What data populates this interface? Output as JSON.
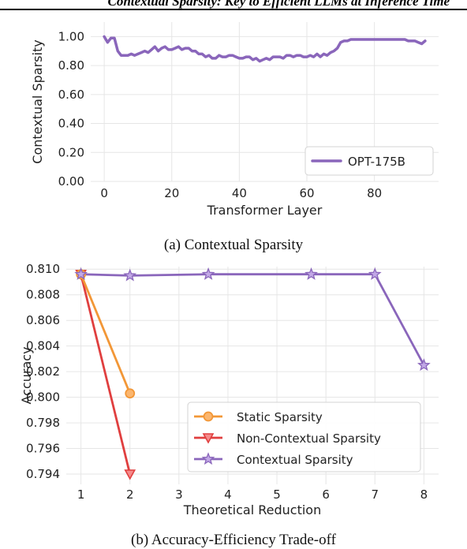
{
  "page_header": "Contextual Sparsity: Key to Efficient LLMs at Inference Time",
  "captions": {
    "a": "(a) Contextual Sparsity",
    "b": "(b) Accuracy-Efficiency Trade-off"
  },
  "colors": {
    "purple": "#8a66bb",
    "orange": "#f29737",
    "red": "#e03f3f",
    "grid": "#e6e6e6"
  },
  "chart_data": [
    {
      "type": "line",
      "title": "",
      "xlabel": "Transformer Layer",
      "ylabel": "Contextual Sparsity",
      "xlim": [
        -4,
        99
      ],
      "ylim": [
        0,
        1.1
      ],
      "xticks": [
        0,
        20,
        40,
        60,
        80
      ],
      "yticks": [
        0.0,
        0.2,
        0.4,
        0.6,
        0.8,
        1.0
      ],
      "ytick_labels": [
        "0.00",
        "0.20",
        "0.40",
        "0.60",
        "0.80",
        "1.00"
      ],
      "grid": true,
      "legend_position": "bottom-right",
      "series": [
        {
          "name": "OPT-175B",
          "x": [
            0,
            1,
            2,
            3,
            4,
            5,
            6,
            7,
            8,
            9,
            10,
            11,
            12,
            13,
            14,
            15,
            16,
            17,
            18,
            19,
            20,
            21,
            22,
            23,
            24,
            25,
            26,
            27,
            28,
            29,
            30,
            31,
            32,
            33,
            34,
            35,
            36,
            37,
            38,
            39,
            40,
            41,
            42,
            43,
            44,
            45,
            46,
            47,
            48,
            49,
            50,
            51,
            52,
            53,
            54,
            55,
            56,
            57,
            58,
            59,
            60,
            61,
            62,
            63,
            64,
            65,
            66,
            67,
            68,
            69,
            70,
            71,
            72,
            73,
            74,
            75,
            76,
            77,
            78,
            79,
            80,
            81,
            82,
            83,
            84,
            85,
            86,
            87,
            88,
            89,
            90,
            91,
            92,
            93,
            94,
            95
          ],
          "y": [
            1.0,
            0.96,
            0.99,
            0.99,
            0.9,
            0.87,
            0.87,
            0.87,
            0.88,
            0.87,
            0.88,
            0.89,
            0.9,
            0.89,
            0.91,
            0.93,
            0.9,
            0.92,
            0.93,
            0.91,
            0.91,
            0.92,
            0.93,
            0.91,
            0.92,
            0.92,
            0.9,
            0.9,
            0.88,
            0.88,
            0.86,
            0.87,
            0.85,
            0.85,
            0.87,
            0.86,
            0.86,
            0.87,
            0.87,
            0.86,
            0.85,
            0.85,
            0.86,
            0.86,
            0.84,
            0.85,
            0.83,
            0.84,
            0.85,
            0.84,
            0.86,
            0.86,
            0.86,
            0.85,
            0.87,
            0.87,
            0.86,
            0.87,
            0.87,
            0.86,
            0.86,
            0.87,
            0.86,
            0.88,
            0.86,
            0.88,
            0.87,
            0.89,
            0.9,
            0.92,
            0.96,
            0.97,
            0.97,
            0.98,
            0.98,
            0.98,
            0.98,
            0.98,
            0.98,
            0.98,
            0.98,
            0.98,
            0.98,
            0.98,
            0.98,
            0.98,
            0.98,
            0.98,
            0.98,
            0.98,
            0.97,
            0.97,
            0.97,
            0.96,
            0.95,
            0.97
          ]
        }
      ]
    },
    {
      "type": "line",
      "title": "",
      "xlabel": "Theoretical Reduction",
      "ylabel": "Accuracy",
      "xlim": [
        0.7,
        8.3
      ],
      "ylim": [
        0.7932,
        0.8102
      ],
      "xticks": [
        1,
        2,
        3,
        4,
        5,
        6,
        7,
        8
      ],
      "yticks": [
        0.794,
        0.796,
        0.798,
        0.8,
        0.802,
        0.804,
        0.806,
        0.808,
        0.81
      ],
      "ytick_labels": [
        "0.794",
        "0.796",
        "0.798",
        "0.800",
        "0.802",
        "0.804",
        "0.806",
        "0.808",
        "0.810"
      ],
      "grid": true,
      "legend_position": "lower-center-right",
      "series": [
        {
          "name": "Static Sparsity",
          "marker": "circle",
          "x": [
            1,
            2
          ],
          "y": [
            0.8096,
            0.8003
          ]
        },
        {
          "name": "Non-Contextual Sparsity",
          "marker": "triangle-down",
          "x": [
            1,
            2
          ],
          "y": [
            0.8096,
            0.794
          ]
        },
        {
          "name": "Contextual Sparsity",
          "marker": "star",
          "x": [
            1,
            2,
            3.6,
            5.7,
            7,
            8
          ],
          "y": [
            0.8096,
            0.8095,
            0.8096,
            0.8096,
            0.8096,
            0.8025
          ]
        }
      ]
    }
  ]
}
